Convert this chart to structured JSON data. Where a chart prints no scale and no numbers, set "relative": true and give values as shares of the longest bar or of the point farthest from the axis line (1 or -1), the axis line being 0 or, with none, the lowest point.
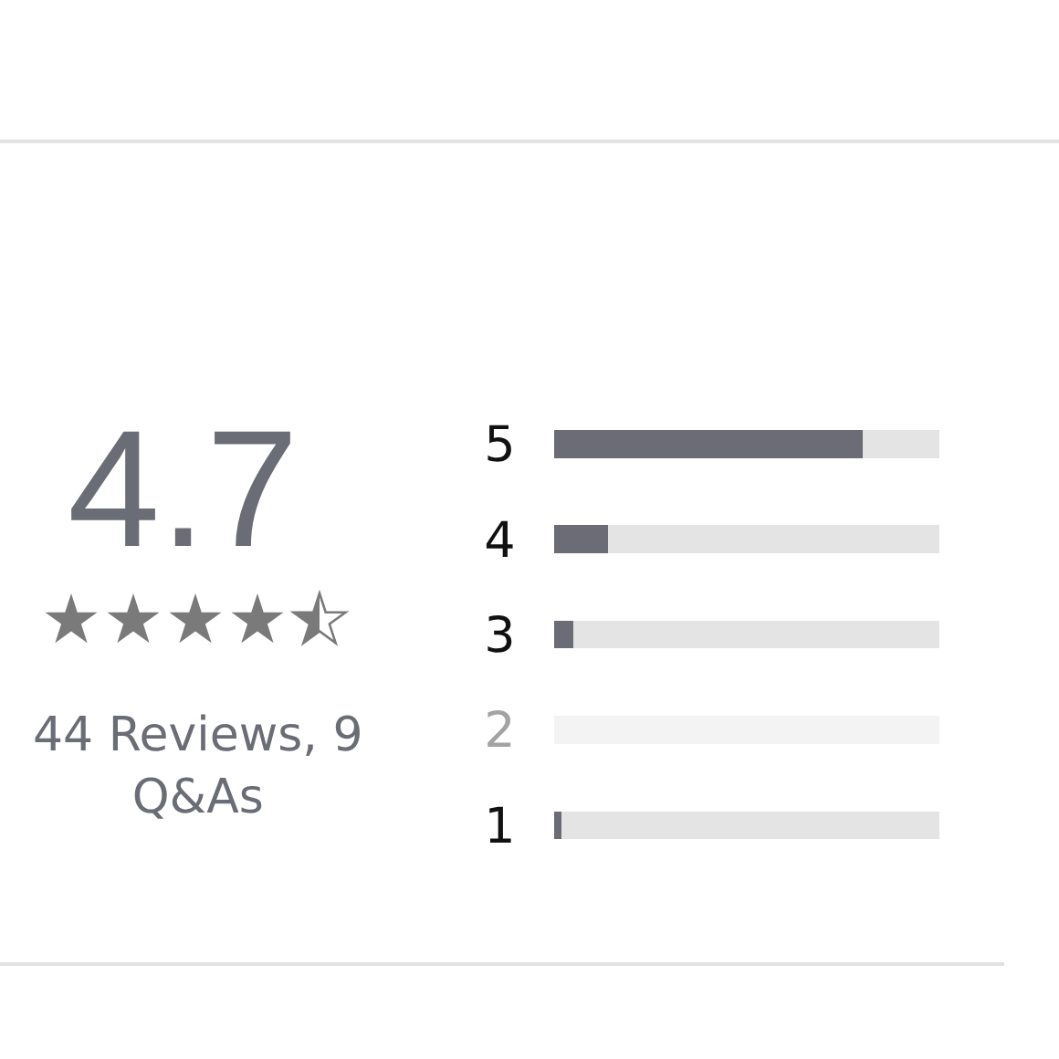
{
  "chart_data": {
    "type": "bar",
    "orientation": "horizontal",
    "stacked": true,
    "relative": true,
    "categories": [
      "5",
      "4",
      "3",
      "2",
      "1"
    ],
    "series": [
      {
        "color": "#6b6c75",
        "values": [
          0.8,
          0.14,
          0.05,
          0,
          0.02
        ]
      },
      {
        "colors": [
          "#e4e4e4",
          "#e4e4e4",
          "#e4e4e4",
          "#f3f3f3",
          "#e4e4e4"
        ],
        "values": [
          0.2,
          0.86,
          0.95,
          1,
          0.98
        ]
      }
    ],
    "annotations": [
      "4.7",
      "44 Reviews, 9 Q&As"
    ]
  }
}
